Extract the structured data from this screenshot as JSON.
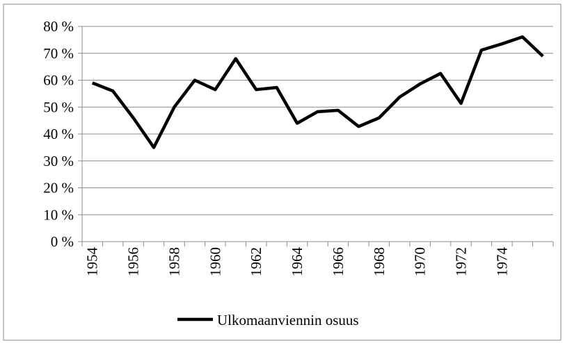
{
  "chart_data": {
    "type": "line",
    "categories": [
      "1954",
      null,
      "1956",
      null,
      "1958",
      null,
      "1960",
      null,
      "1962",
      null,
      "1964",
      null,
      "1966",
      null,
      "1968",
      null,
      "1970",
      null,
      "1972",
      null,
      "1974",
      null,
      null
    ],
    "series": [
      {
        "name": "Ulkomaanviennin osuus",
        "color": "#000000",
        "values": [
          59,
          56,
          46,
          35,
          50,
          60,
          56.5,
          68,
          56.5,
          57.3,
          44,
          48.3,
          48.8,
          42.8,
          46,
          53.7,
          58.6,
          62.5,
          51.4,
          71.2,
          73.5,
          76.1,
          68.9
        ]
      }
    ],
    "ylim": [
      0,
      80
    ],
    "yticks": [
      {
        "value": 0,
        "label": "0 %"
      },
      {
        "value": 10,
        "label": "10 %"
      },
      {
        "value": 20,
        "label": "20 %"
      },
      {
        "value": 30,
        "label": "30 %"
      },
      {
        "value": 40,
        "label": "40 %"
      },
      {
        "value": 50,
        "label": "50 %"
      },
      {
        "value": 60,
        "label": "60 %"
      },
      {
        "value": 70,
        "label": "70 %"
      },
      {
        "value": 80,
        "label": "80 %"
      }
    ],
    "grid": true,
    "legend": "bottom"
  }
}
